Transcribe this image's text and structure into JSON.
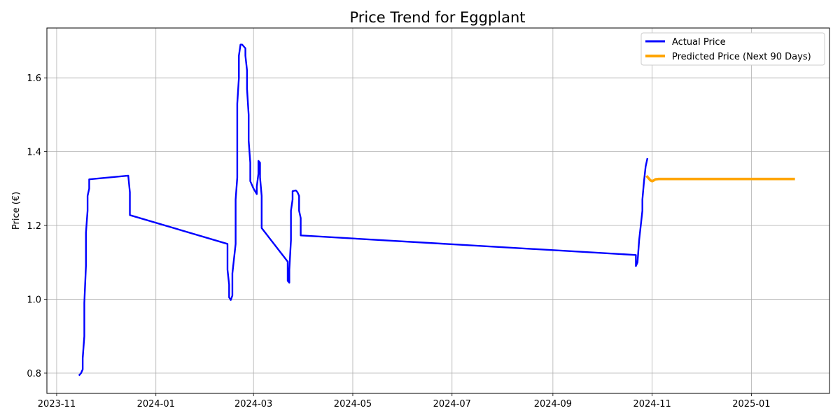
{
  "chart_data": {
    "type": "line",
    "title": "Price Trend for Eggplant",
    "xlabel": "",
    "ylabel": "Price (€)",
    "xlim": [
      "2023-10-26",
      "2025-02-18"
    ],
    "ylim": [
      0.745,
      1.735
    ],
    "x_ticks": [
      "2023-11",
      "2024-01",
      "2024-03",
      "2024-05",
      "2024-07",
      "2024-09",
      "2024-11",
      "2025-01"
    ],
    "y_ticks": [
      0.8,
      1.0,
      1.2,
      1.4,
      1.6
    ],
    "y_tick_labels": [
      "0.8",
      "1.0",
      "1.2",
      "1.4",
      "1.6"
    ],
    "grid": true,
    "legend_position": "top-right",
    "series": [
      {
        "name": "Actual Price",
        "color": "#0000ff",
        "points": [
          [
            "2023-11-15",
            0.795
          ],
          [
            "2023-11-16",
            0.8
          ],
          [
            "2023-11-17",
            0.81
          ],
          [
            "2023-11-17",
            0.84
          ],
          [
            "2023-11-18",
            0.9
          ],
          [
            "2023-11-18",
            0.99
          ],
          [
            "2023-11-19",
            1.09
          ],
          [
            "2023-11-19",
            1.18
          ],
          [
            "2023-11-20",
            1.24
          ],
          [
            "2023-11-20",
            1.28
          ],
          [
            "2023-11-21",
            1.3
          ],
          [
            "2023-11-21",
            1.325
          ],
          [
            "2023-12-15",
            1.335
          ],
          [
            "2023-12-16",
            1.29
          ],
          [
            "2023-12-16",
            1.228
          ],
          [
            "2024-02-14",
            1.15
          ],
          [
            "2024-02-14",
            1.08
          ],
          [
            "2024-02-15",
            1.04
          ],
          [
            "2024-02-15",
            1.005
          ],
          [
            "2024-02-16",
            0.998
          ],
          [
            "2024-02-17",
            1.01
          ],
          [
            "2024-02-17",
            1.07
          ],
          [
            "2024-02-19",
            1.15
          ],
          [
            "2024-02-19",
            1.27
          ],
          [
            "2024-02-20",
            1.33
          ],
          [
            "2024-02-20",
            1.41
          ],
          [
            "2024-02-20",
            1.53
          ],
          [
            "2024-02-21",
            1.6
          ],
          [
            "2024-02-21",
            1.66
          ],
          [
            "2024-02-22",
            1.69
          ],
          [
            "2024-02-23",
            1.69
          ],
          [
            "2024-02-24",
            1.685
          ],
          [
            "2024-02-25",
            1.68
          ],
          [
            "2024-02-25",
            1.66
          ],
          [
            "2024-02-26",
            1.62
          ],
          [
            "2024-02-26",
            1.57
          ],
          [
            "2024-02-27",
            1.5
          ],
          [
            "2024-02-27",
            1.43
          ],
          [
            "2024-02-28",
            1.37
          ],
          [
            "2024-02-28",
            1.32
          ],
          [
            "2024-03-01",
            1.3
          ],
          [
            "2024-03-03",
            1.285
          ],
          [
            "2024-03-03",
            1.305
          ],
          [
            "2024-03-04",
            1.34
          ],
          [
            "2024-03-04",
            1.375
          ],
          [
            "2024-03-05",
            1.37
          ],
          [
            "2024-03-05",
            1.33
          ],
          [
            "2024-03-06",
            1.28
          ],
          [
            "2024-03-06",
            1.193
          ],
          [
            "2024-03-22",
            1.102
          ],
          [
            "2024-03-22",
            1.05
          ],
          [
            "2024-03-23",
            1.045
          ],
          [
            "2024-03-23",
            1.08
          ],
          [
            "2024-03-24",
            1.16
          ],
          [
            "2024-03-24",
            1.24
          ],
          [
            "2024-03-25",
            1.27
          ],
          [
            "2024-03-25",
            1.293
          ],
          [
            "2024-03-27",
            1.295
          ],
          [
            "2024-03-28",
            1.29
          ],
          [
            "2024-03-29",
            1.28
          ],
          [
            "2024-03-29",
            1.24
          ],
          [
            "2024-03-30",
            1.22
          ],
          [
            "2024-03-30",
            1.173
          ],
          [
            "2024-10-22",
            1.12
          ],
          [
            "2024-10-22",
            1.09
          ],
          [
            "2024-10-23",
            1.1
          ],
          [
            "2024-10-24",
            1.16
          ],
          [
            "2024-10-25",
            1.2
          ],
          [
            "2024-10-26",
            1.24
          ],
          [
            "2024-10-26",
            1.27
          ],
          [
            "2024-10-27",
            1.32
          ],
          [
            "2024-10-28",
            1.36
          ],
          [
            "2024-10-29",
            1.38
          ]
        ]
      },
      {
        "name": "Predicted Price (Next 90 Days)",
        "color": "#ffa500",
        "points": [
          [
            "2024-10-29",
            1.332
          ],
          [
            "2024-10-31",
            1.322
          ],
          [
            "2024-11-01",
            1.32
          ],
          [
            "2024-11-02",
            1.322
          ],
          [
            "2024-11-03",
            1.325
          ],
          [
            "2024-11-05",
            1.326
          ],
          [
            "2024-11-15",
            1.326
          ],
          [
            "2024-12-01",
            1.326
          ],
          [
            "2024-12-15",
            1.326
          ],
          [
            "2025-01-01",
            1.326
          ],
          [
            "2025-01-15",
            1.326
          ],
          [
            "2025-01-27",
            1.326
          ]
        ]
      }
    ]
  }
}
